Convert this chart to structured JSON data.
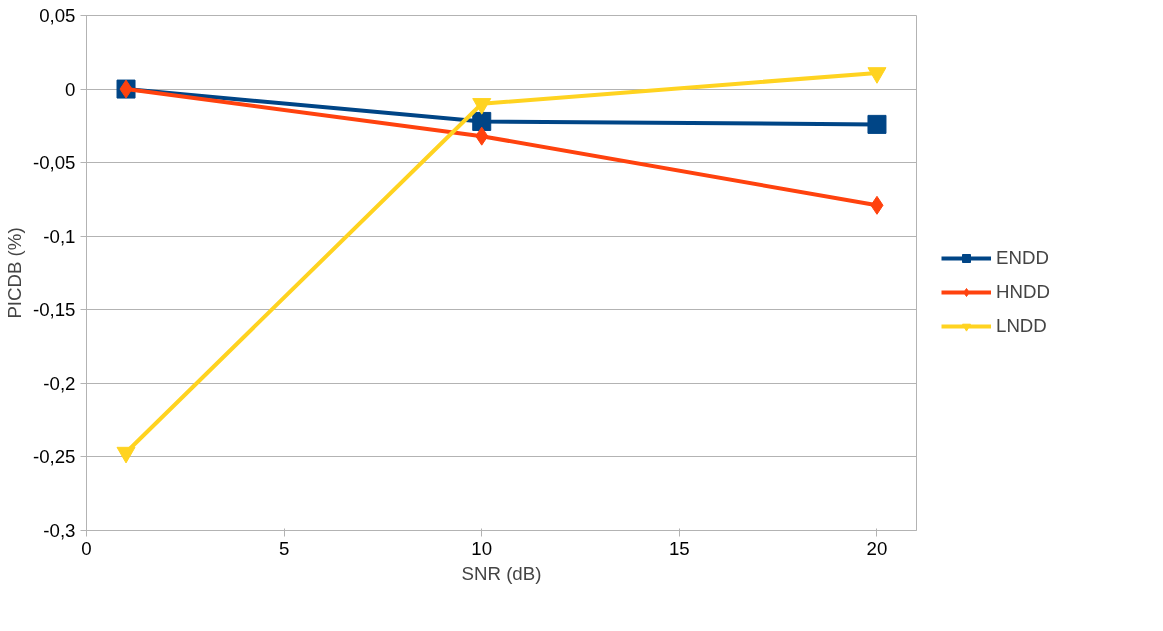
{
  "chart_data": {
    "type": "line",
    "xlabel": "SNR (dB)",
    "ylabel": "PICDB (%)",
    "x": [
      1,
      10,
      20
    ],
    "series": [
      {
        "name": "ENDD",
        "color": "#004586",
        "marker": "square",
        "values": [
          0,
          -0.022,
          -0.024
        ]
      },
      {
        "name": "HNDD",
        "color": "#ff420e",
        "marker": "diamond",
        "values": [
          0,
          -0.032,
          -0.079
        ]
      },
      {
        "name": "LNDD",
        "color": "#ffd320",
        "marker": "triangle",
        "values": [
          -0.247,
          -0.01,
          0.011
        ]
      }
    ],
    "xlim": [
      0,
      21
    ],
    "xticks": [
      0,
      5,
      10,
      15,
      20
    ],
    "ylim": [
      -0.3,
      0.05
    ],
    "yticks": [
      {
        "value": -0.3,
        "label": "-0,3"
      },
      {
        "value": -0.25,
        "label": "-0,25"
      },
      {
        "value": -0.2,
        "label": "-0,2"
      },
      {
        "value": -0.15,
        "label": "-0,15"
      },
      {
        "value": -0.1,
        "label": "-0,1"
      },
      {
        "value": -0.05,
        "label": "-0,05"
      },
      0,
      {
        "value": 0.05,
        "label": "0,05"
      }
    ],
    "grid": "y",
    "legend": "right",
    "line_style": "solid"
  }
}
